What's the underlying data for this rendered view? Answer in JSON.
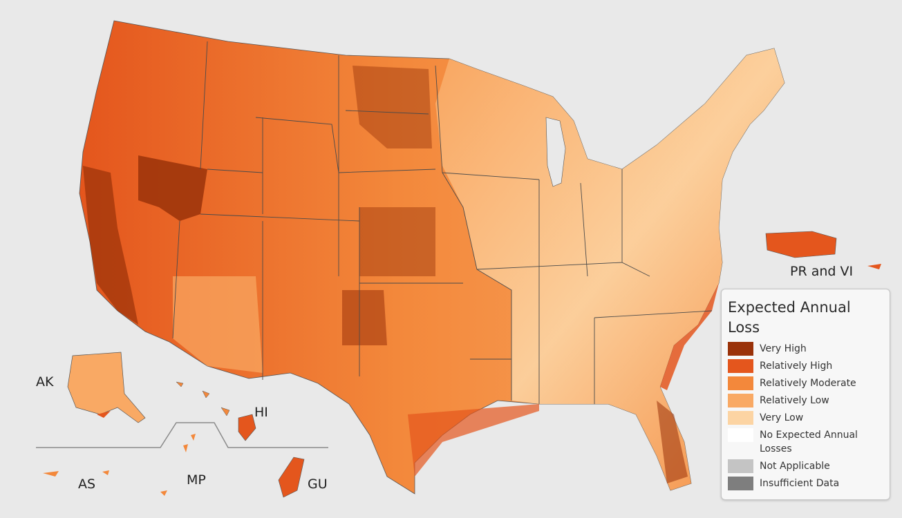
{
  "map": {
    "region_labels": {
      "pr_vi": "PR and VI",
      "ak": "AK",
      "hi": "HI",
      "as": "AS",
      "mp": "MP",
      "gu": "GU"
    }
  },
  "legend": {
    "title": "Expected Annual Loss",
    "items": [
      {
        "label": "Very High",
        "color": "#9a3209"
      },
      {
        "label": "Relatively High",
        "color": "#e4561d"
      },
      {
        "label": "Relatively Moderate",
        "color": "#f3883b"
      },
      {
        "label": "Relatively Low",
        "color": "#f9a964"
      },
      {
        "label": "Very Low",
        "color": "#fcd4a3"
      },
      {
        "label": "No Expected Annual Losses",
        "color": "#ffffff"
      },
      {
        "label": "Not Applicable",
        "color": "#c4c4c4"
      },
      {
        "label": "Insufficient Data",
        "color": "#7e7e7e"
      }
    ]
  }
}
